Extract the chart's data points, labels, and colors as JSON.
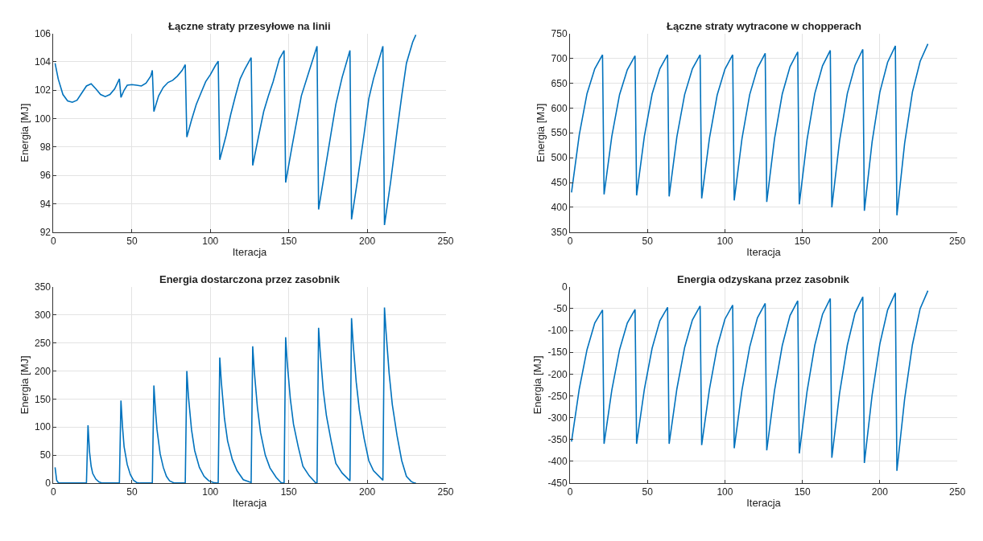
{
  "chart_data": [
    {
      "type": "line",
      "title": "Łączne straty przesyłowe na linii",
      "xlabel": "Iteracja",
      "ylabel": "Energia [MJ]",
      "xlim": [
        0,
        250
      ],
      "xticks": [
        0,
        50,
        100,
        150,
        200,
        250
      ],
      "ylim": [
        92,
        106
      ],
      "yticks": [
        92,
        94,
        96,
        98,
        100,
        102,
        104,
        106
      ],
      "grid": true,
      "x": [
        1,
        3,
        6,
        9,
        12,
        15,
        18,
        21,
        24,
        27,
        30,
        33,
        36,
        39,
        42,
        43,
        45,
        47,
        50,
        53,
        56,
        59,
        62,
        63,
        64,
        67,
        70,
        73,
        76,
        79,
        82,
        84,
        85,
        88,
        91,
        94,
        97,
        100,
        103,
        105,
        106,
        110,
        113,
        116,
        119,
        122,
        126,
        127,
        131,
        134,
        137,
        140,
        144,
        147,
        148,
        152,
        155,
        158,
        162,
        168,
        169,
        173,
        177,
        180,
        184,
        189,
        190,
        194,
        198,
        201,
        204,
        210,
        211,
        215,
        219,
        222,
        225,
        229,
        231
      ],
      "series": [
        {
          "color": "#0072bd",
          "values": [
            103.9,
            102.8,
            101.7,
            101.25,
            101.15,
            101.3,
            101.8,
            102.3,
            102.45,
            102.1,
            101.7,
            101.55,
            101.7,
            102.1,
            102.8,
            101.5,
            102.0,
            102.35,
            102.4,
            102.35,
            102.3,
            102.5,
            103.0,
            103.4,
            100.5,
            101.6,
            102.2,
            102.55,
            102.7,
            103.0,
            103.4,
            103.8,
            98.7,
            99.9,
            101.0,
            101.8,
            102.6,
            103.1,
            103.7,
            104.05,
            97.1,
            98.8,
            100.3,
            101.6,
            102.8,
            103.5,
            104.3,
            96.7,
            98.9,
            100.5,
            101.6,
            102.6,
            104.2,
            104.8,
            95.5,
            98.0,
            99.8,
            101.6,
            103.0,
            105.1,
            93.6,
            96.3,
            99.0,
            101.0,
            102.9,
            104.8,
            92.9,
            95.8,
            98.9,
            101.4,
            102.8,
            105.1,
            92.5,
            95.6,
            99.1,
            101.6,
            103.9,
            105.4,
            105.9
          ]
        }
      ]
    },
    {
      "type": "line",
      "title": "Łączne straty wytracone w chopperach",
      "xlabel": "Iteracja",
      "ylabel": "Energia [MJ]",
      "xlim": [
        0,
        250
      ],
      "xticks": [
        0,
        50,
        100,
        150,
        200,
        250
      ],
      "ylim": [
        350,
        750
      ],
      "yticks": [
        350,
        400,
        450,
        500,
        550,
        600,
        650,
        700,
        750
      ],
      "grid": true,
      "x": [
        1,
        6,
        11,
        16,
        21,
        22,
        27,
        32,
        37,
        42,
        43,
        48,
        53,
        58,
        63,
        64,
        69,
        74,
        79,
        84,
        85,
        90,
        95,
        100,
        105,
        106,
        111,
        116,
        121,
        126,
        127,
        132,
        137,
        142,
        147,
        148,
        153,
        158,
        163,
        168,
        169,
        174,
        179,
        184,
        189,
        190,
        195,
        200,
        205,
        210,
        211,
        216,
        221,
        226,
        231
      ],
      "series": [
        {
          "color": "#0072bd",
          "values": [
            430,
            546,
            629,
            679,
            707,
            426,
            543,
            627,
            677,
            705,
            424,
            543,
            628,
            679,
            707,
            422,
            542,
            627,
            679,
            707,
            418,
            539,
            626,
            678,
            707,
            414,
            538,
            627,
            680,
            710,
            411,
            538,
            628,
            683,
            713,
            406,
            536,
            629,
            685,
            716,
            400,
            534,
            629,
            686,
            718,
            393,
            532,
            632,
            692,
            725,
            384,
            529,
            632,
            694,
            729
          ]
        }
      ]
    },
    {
      "type": "line",
      "title": "Energia dostarczona przez zasobnik",
      "xlabel": "Iteracja",
      "ylabel": "Energia [MJ]",
      "xlim": [
        0,
        250
      ],
      "xticks": [
        0,
        50,
        100,
        150,
        200,
        250
      ],
      "ylim": [
        0,
        350
      ],
      "yticks": [
        0,
        50,
        100,
        150,
        200,
        250,
        300,
        350
      ],
      "grid": true,
      "x": [
        1,
        2,
        3,
        4,
        21,
        22,
        23,
        24,
        25,
        27,
        29,
        31,
        42,
        43,
        44,
        45,
        47,
        49,
        51,
        53,
        55,
        63,
        64,
        65,
        66,
        68,
        70,
        72,
        74,
        77,
        84,
        85,
        86,
        88,
        90,
        93,
        96,
        99,
        102,
        105,
        106,
        107,
        109,
        111,
        114,
        117,
        121,
        126,
        127,
        128,
        130,
        132,
        135,
        138,
        142,
        145,
        147,
        148,
        149,
        151,
        153,
        156,
        159,
        163,
        167,
        168,
        169,
        170,
        172,
        174,
        177,
        180,
        184,
        189,
        190,
        191,
        193,
        195,
        198,
        201,
        204,
        210,
        211,
        212,
        214,
        216,
        219,
        222,
        225,
        228,
        230,
        231
      ],
      "series": [
        {
          "color": "#0072bd",
          "values": [
            28,
            5,
            1,
            0,
            0,
            103,
            55,
            30,
            17,
            7,
            2,
            0,
            0,
            147,
            100,
            65,
            33,
            15,
            5,
            1,
            0,
            0,
            174,
            130,
            95,
            52,
            28,
            12,
            4,
            0,
            0,
            200,
            155,
            95,
            58,
            28,
            12,
            4,
            1,
            0,
            224,
            180,
            115,
            75,
            42,
            22,
            6,
            1,
            244,
            200,
            135,
            90,
            50,
            27,
            10,
            1,
            0,
            260,
            215,
            150,
            105,
            65,
            30,
            13,
            1,
            0,
            277,
            235,
            165,
            120,
            75,
            35,
            18,
            4,
            294,
            250,
            180,
            130,
            80,
            40,
            22,
            5,
            313,
            270,
            195,
            140,
            85,
            40,
            12,
            3,
            0,
            0
          ]
        }
      ]
    },
    {
      "type": "line",
      "title": "Energia odzyskana przez zasobnik",
      "xlabel": "Iteracja",
      "ylabel": "Energia [MJ]",
      "xlim": [
        0,
        250
      ],
      "xticks": [
        0,
        50,
        100,
        150,
        200,
        250
      ],
      "ylim": [
        -450,
        0
      ],
      "yticks": [
        -450,
        -400,
        -350,
        -300,
        -250,
        -200,
        -150,
        -100,
        -50,
        0
      ],
      "grid": true,
      "x": [
        1,
        6,
        11,
        16,
        21,
        22,
        27,
        32,
        37,
        42,
        43,
        48,
        53,
        58,
        63,
        64,
        69,
        74,
        79,
        84,
        85,
        90,
        95,
        100,
        105,
        106,
        111,
        116,
        121,
        126,
        127,
        132,
        137,
        142,
        147,
        148,
        153,
        158,
        163,
        168,
        169,
        174,
        179,
        184,
        189,
        190,
        195,
        200,
        205,
        210,
        211,
        216,
        221,
        226,
        231
      ],
      "series": [
        {
          "color": "#0072bd",
          "values": [
            -355,
            -234,
            -144,
            -83,
            -53,
            -360,
            -237,
            -144,
            -83,
            -52,
            -360,
            -235,
            -141,
            -78,
            -47,
            -360,
            -234,
            -139,
            -76,
            -44,
            -363,
            -235,
            -138,
            -74,
            -42,
            -370,
            -237,
            -138,
            -71,
            -38,
            -375,
            -238,
            -135,
            -66,
            -32,
            -382,
            -240,
            -134,
            -63,
            -27,
            -392,
            -244,
            -134,
            -60,
            -23,
            -404,
            -248,
            -131,
            -53,
            -14,
            -422,
            -257,
            -133,
            -50,
            -9
          ]
        }
      ]
    }
  ]
}
